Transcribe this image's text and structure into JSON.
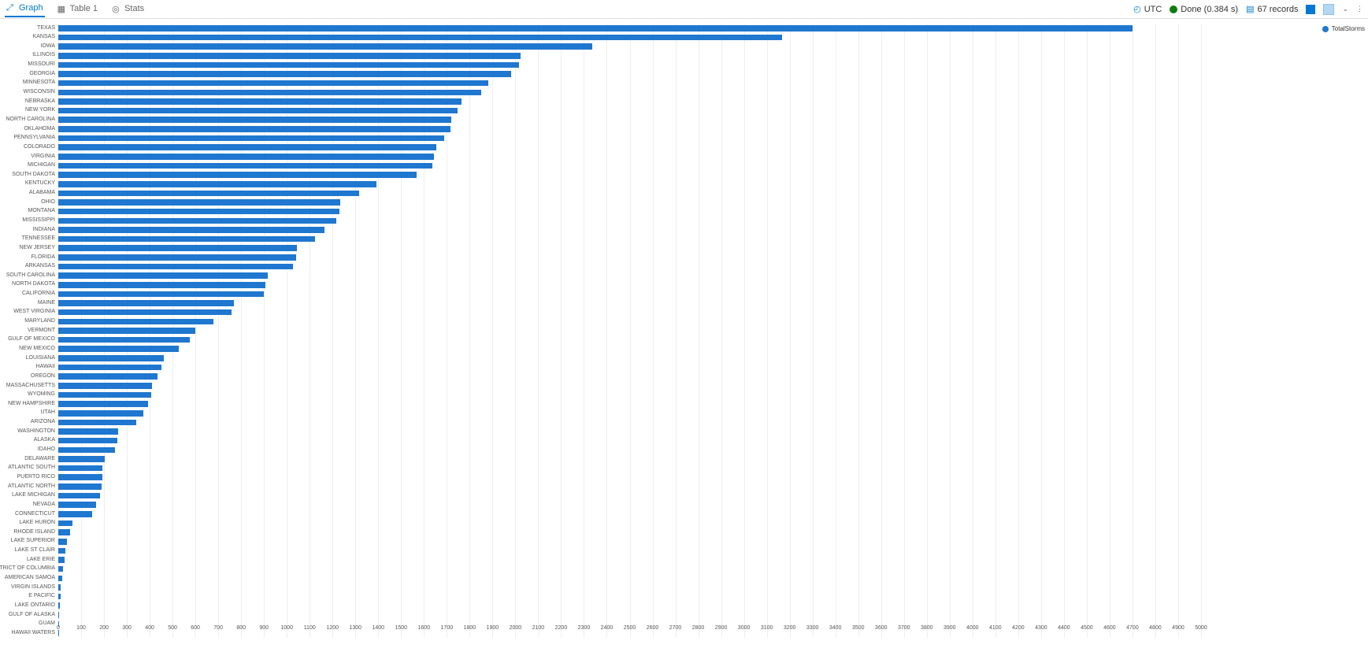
{
  "toolbar": {
    "tabs": [
      {
        "id": "graph",
        "label": "Graph",
        "active": true,
        "icon": "chart-line-icon"
      },
      {
        "id": "table",
        "label": "Table 1",
        "active": false,
        "icon": "table-icon"
      },
      {
        "id": "stats",
        "label": "Stats",
        "active": false,
        "icon": "info-icon"
      }
    ],
    "utc_label": "UTC",
    "status_label": "Done (0.384 s)",
    "records_label": "67 records"
  },
  "legend": {
    "series_name": "TotalStorms",
    "color": "#1f77d0"
  },
  "chart": {
    "type": "bar-horizontal",
    "bar_color": "#1f77d0",
    "background_color": "#ffffff",
    "grid_color": "#eeeeee",
    "label_fontsize": 7,
    "xaxis": {
      "min": 0,
      "max": 5000,
      "tick_step": 100
    },
    "data": [
      {
        "label": "TEXAS",
        "value": 4701
      },
      {
        "label": "KANSAS",
        "value": 3166
      },
      {
        "label": "IOWA",
        "value": 2337
      },
      {
        "label": "ILLINOIS",
        "value": 2022
      },
      {
        "label": "MISSOURI",
        "value": 2016
      },
      {
        "label": "GEORGIA",
        "value": 1983
      },
      {
        "label": "MINNESOTA",
        "value": 1881
      },
      {
        "label": "WISCONSIN",
        "value": 1850
      },
      {
        "label": "NEBRASKA",
        "value": 1766
      },
      {
        "label": "NEW YORK",
        "value": 1746
      },
      {
        "label": "NORTH CAROLINA",
        "value": 1721
      },
      {
        "label": "OKLAHOMA",
        "value": 1716
      },
      {
        "label": "PENNSYLVANIA",
        "value": 1687
      },
      {
        "label": "COLORADO",
        "value": 1654
      },
      {
        "label": "VIRGINIA",
        "value": 1642
      },
      {
        "label": "MICHIGAN",
        "value": 1637
      },
      {
        "label": "SOUTH DAKOTA",
        "value": 1567
      },
      {
        "label": "KENTUCKY",
        "value": 1391
      },
      {
        "label": "ALABAMA",
        "value": 1315
      },
      {
        "label": "OHIO",
        "value": 1233
      },
      {
        "label": "MONTANA",
        "value": 1230
      },
      {
        "label": "MISSISSIPPI",
        "value": 1218
      },
      {
        "label": "INDIANA",
        "value": 1164
      },
      {
        "label": "TENNESSEE",
        "value": 1125
      },
      {
        "label": "NEW JERSEY",
        "value": 1044
      },
      {
        "label": "FLORIDA",
        "value": 1042
      },
      {
        "label": "ARKANSAS",
        "value": 1028
      },
      {
        "label": "SOUTH CAROLINA",
        "value": 915
      },
      {
        "label": "NORTH DAKOTA",
        "value": 905
      },
      {
        "label": "CALIFORNIA",
        "value": 898
      },
      {
        "label": "MAINE",
        "value": 769
      },
      {
        "label": "WEST VIRGINIA",
        "value": 757
      },
      {
        "label": "MARYLAND",
        "value": 680
      },
      {
        "label": "VERMONT",
        "value": 599
      },
      {
        "label": "GULF OF MEXICO",
        "value": 577
      },
      {
        "label": "NEW MEXICO",
        "value": 527
      },
      {
        "label": "LOUISIANA",
        "value": 463
      },
      {
        "label": "HAWAII",
        "value": 450
      },
      {
        "label": "OREGON",
        "value": 435
      },
      {
        "label": "MASSACHUSETTS",
        "value": 411
      },
      {
        "label": "WYOMING",
        "value": 405
      },
      {
        "label": "NEW HAMPSHIRE",
        "value": 394
      },
      {
        "label": "UTAH",
        "value": 372
      },
      {
        "label": "ARIZONA",
        "value": 340
      },
      {
        "label": "WASHINGTON",
        "value": 261
      },
      {
        "label": "ALASKA",
        "value": 257
      },
      {
        "label": "IDAHO",
        "value": 249
      },
      {
        "label": "DELAWARE",
        "value": 205
      },
      {
        "label": "ATLANTIC SOUTH",
        "value": 193
      },
      {
        "label": "PUERTO RICO",
        "value": 192
      },
      {
        "label": "ATLANTIC NORTH",
        "value": 188
      },
      {
        "label": "LAKE MICHIGAN",
        "value": 182
      },
      {
        "label": "NEVADA",
        "value": 166
      },
      {
        "label": "CONNECTICUT",
        "value": 148
      },
      {
        "label": "LAKE HURON",
        "value": 63
      },
      {
        "label": "RHODE ISLAND",
        "value": 51
      },
      {
        "label": "LAKE SUPERIOR",
        "value": 38
      },
      {
        "label": "LAKE ST CLAIR",
        "value": 32
      },
      {
        "label": "LAKE ERIE",
        "value": 27
      },
      {
        "label": "DISTRICT OF COLUMBIA",
        "value": 22
      },
      {
        "label": "AMERICAN SAMOA",
        "value": 16
      },
      {
        "label": "VIRGIN ISLANDS",
        "value": 12
      },
      {
        "label": "E PACIFIC",
        "value": 10
      },
      {
        "label": "LAKE ONTARIO",
        "value": 8
      },
      {
        "label": "GULF OF ALASKA",
        "value": 4
      },
      {
        "label": "GUAM",
        "value": 3
      },
      {
        "label": "HAWAII WATERS",
        "value": 2
      }
    ]
  }
}
